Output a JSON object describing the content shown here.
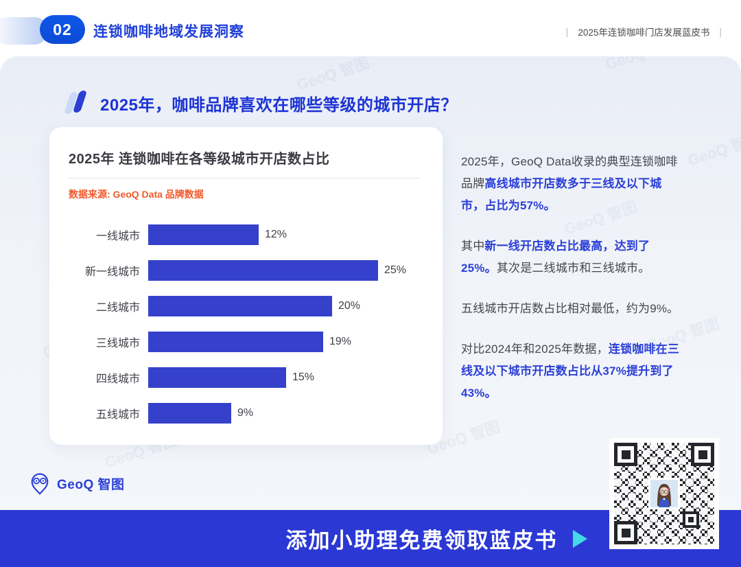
{
  "header": {
    "badge": "02",
    "title": "连锁咖啡地域发展洞察",
    "meta": "2025年连锁咖啡门店发展蓝皮书",
    "separator": "|"
  },
  "section": {
    "title": "2025年，咖啡品牌喜欢在哪些等级的城市开店？"
  },
  "chart_card": {
    "title": "2025年 连锁咖啡在各等级城市开店数占比",
    "source": "数据来源: GeoQ Data 品牌数据"
  },
  "chart_data": {
    "type": "bar",
    "orientation": "horizontal",
    "title": "2025年 连锁咖啡在各等级城市开店数占比",
    "categories": [
      "一线城市",
      "新一线城市",
      "二线城市",
      "三线城市",
      "四线城市",
      "五线城市"
    ],
    "values": [
      12,
      25,
      20,
      19,
      15,
      9
    ],
    "value_suffix": "%",
    "xlim": [
      0,
      25
    ],
    "bar_color": "#3541cb",
    "grid": false,
    "legend": false
  },
  "insights": [
    [
      {
        "t": "2025年，GeoQ Data收录的典型连锁咖啡品牌",
        "hl": false
      },
      {
        "t": "高线城市开店数多于三线及以下城市，占比为57%。",
        "hl": true
      }
    ],
    [
      {
        "t": "其中",
        "hl": false
      },
      {
        "t": "新一线开店数占比最高，达到了25%。",
        "hl": true
      },
      {
        "t": "其次是二线城市和三线城市。",
        "hl": false
      }
    ],
    [
      {
        "t": "五线城市开店数占比相对最低，约为9%。",
        "hl": false
      }
    ],
    [
      {
        "t": "对比2024年和2025年数据，",
        "hl": false
      },
      {
        "t": "连锁咖啡在三线及以下城市开店数占比从37%提升到了43%。",
        "hl": true
      }
    ]
  ],
  "footer": {
    "logo_text": "GeoQ 智图",
    "banner_text": "添加小助理免费领取蓝皮书"
  },
  "watermark": {
    "text": "GeoQ 智图"
  },
  "colors": {
    "accent_blue": "#2b3fd6",
    "bar_blue": "#3541cb",
    "banner_blue": "#2b38d4",
    "badge_blue": "#0d53e8",
    "source_orange": "#f2592a",
    "arrow_cyan": "#43d9e9",
    "text_dark": "#45464e"
  }
}
